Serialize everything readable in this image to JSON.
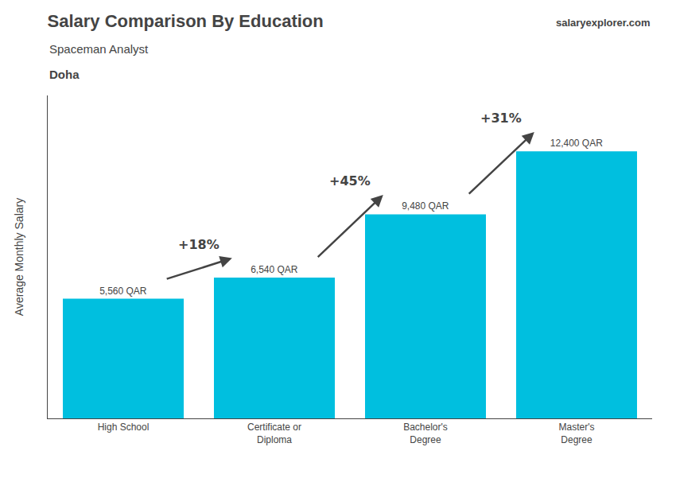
{
  "chart_data": {
    "type": "bar",
    "title": "Salary Comparison By Education",
    "subtitle": "Spaceman Analyst",
    "city": "Doha",
    "source": "salaryexplorer.com",
    "ylabel": "Average Monthly Salary",
    "categories": [
      "High School",
      "Certificate or\nDiploma",
      "Bachelor's\nDegree",
      "Master's\nDegree"
    ],
    "values": [
      5560,
      6540,
      9480,
      12400
    ],
    "value_labels": [
      "5,560 QAR",
      "6,540 QAR",
      "9,480 QAR",
      "12,400 QAR"
    ],
    "data_labels": true,
    "change_labels": [
      "+18%",
      "+45%",
      "+31%"
    ],
    "color": "#00bfdf",
    "ylim": [
      0,
      15000
    ],
    "yticks": [],
    "tick_labels": "x",
    "grid": false
  }
}
